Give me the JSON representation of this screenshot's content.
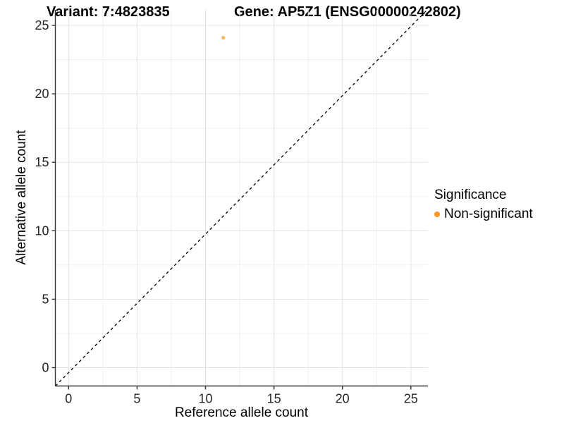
{
  "chart_data": {
    "type": "scatter",
    "title_variant": "Variant: 7:4823835",
    "title_gene": "Gene: AP5Z1 (ENSG00000242802)",
    "xlabel": "Reference allele count",
    "ylabel": "Alternative allele count",
    "x_ticks": [
      0,
      5,
      10,
      15,
      20,
      25
    ],
    "y_ticks": [
      0,
      5,
      10,
      15,
      20,
      25
    ],
    "xlim": [
      -1,
      26.3
    ],
    "ylim": [
      -1.3,
      26.1
    ],
    "grid": "major-and-minor",
    "reference_line": {
      "equation": "y = x",
      "style": "dashed",
      "color": "#000000"
    },
    "series": [
      {
        "name": "Non-significant",
        "color": "#FF941E",
        "points": [
          {
            "x": 11.3,
            "y": 24.1
          }
        ]
      }
    ],
    "legend": {
      "title": "Significance",
      "position": "right",
      "items": [
        {
          "label": "Non-significant",
          "color": "#FF941E"
        }
      ]
    }
  },
  "colors": {
    "background": "#FFFFFF",
    "grid_major": "#E3E3E3",
    "grid_minor": "#F0F0F0",
    "axis_line": "#333333",
    "tick_text": "#262626",
    "point_fill": "#FF941E",
    "legend_dot": "#FF941E"
  }
}
